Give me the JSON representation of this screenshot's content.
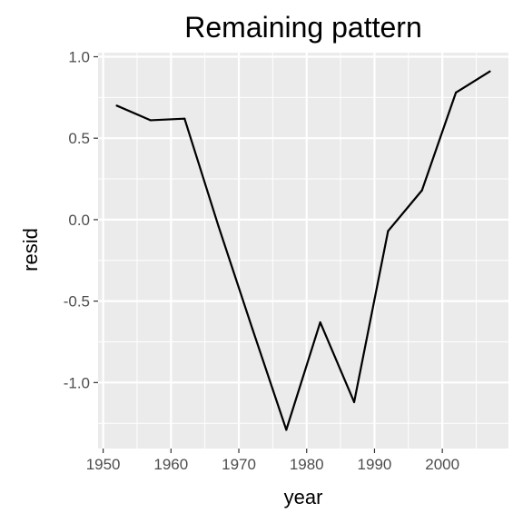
{
  "chart_data": {
    "type": "line",
    "title": "Remaining pattern",
    "xlabel": "year",
    "ylabel": "resid",
    "xlim": [
      1949.25,
      2009.75
    ],
    "ylim": [
      -1.405,
      1.025
    ],
    "x_ticks": [
      1950,
      1960,
      1970,
      1980,
      1990,
      2000
    ],
    "x_tick_labels": [
      "1950",
      "1960",
      "1970",
      "1980",
      "1990",
      "2000"
    ],
    "y_ticks": [
      1.0,
      0.5,
      0.0,
      -0.5,
      -1.0
    ],
    "y_tick_labels": [
      "1.0",
      "0.5",
      "0.0",
      "-0.5",
      "-1.0"
    ],
    "grid": true,
    "legend": "none",
    "colors": {
      "panel_background": "#ebebeb",
      "grid_line": "#ffffff",
      "line": "#000000",
      "tick_label": "#4d4d4d",
      "tick_mark": "#333333"
    },
    "series": [
      {
        "x": [
          1952,
          1957,
          1962,
          1967,
          1972,
          1977,
          1982,
          1987,
          1992,
          1997,
          2002,
          2007
        ],
        "y": [
          0.7,
          0.61,
          0.62,
          -0.04,
          -0.67,
          -1.29,
          -0.63,
          -1.12,
          -0.07,
          0.18,
          0.78,
          0.91
        ]
      }
    ]
  }
}
